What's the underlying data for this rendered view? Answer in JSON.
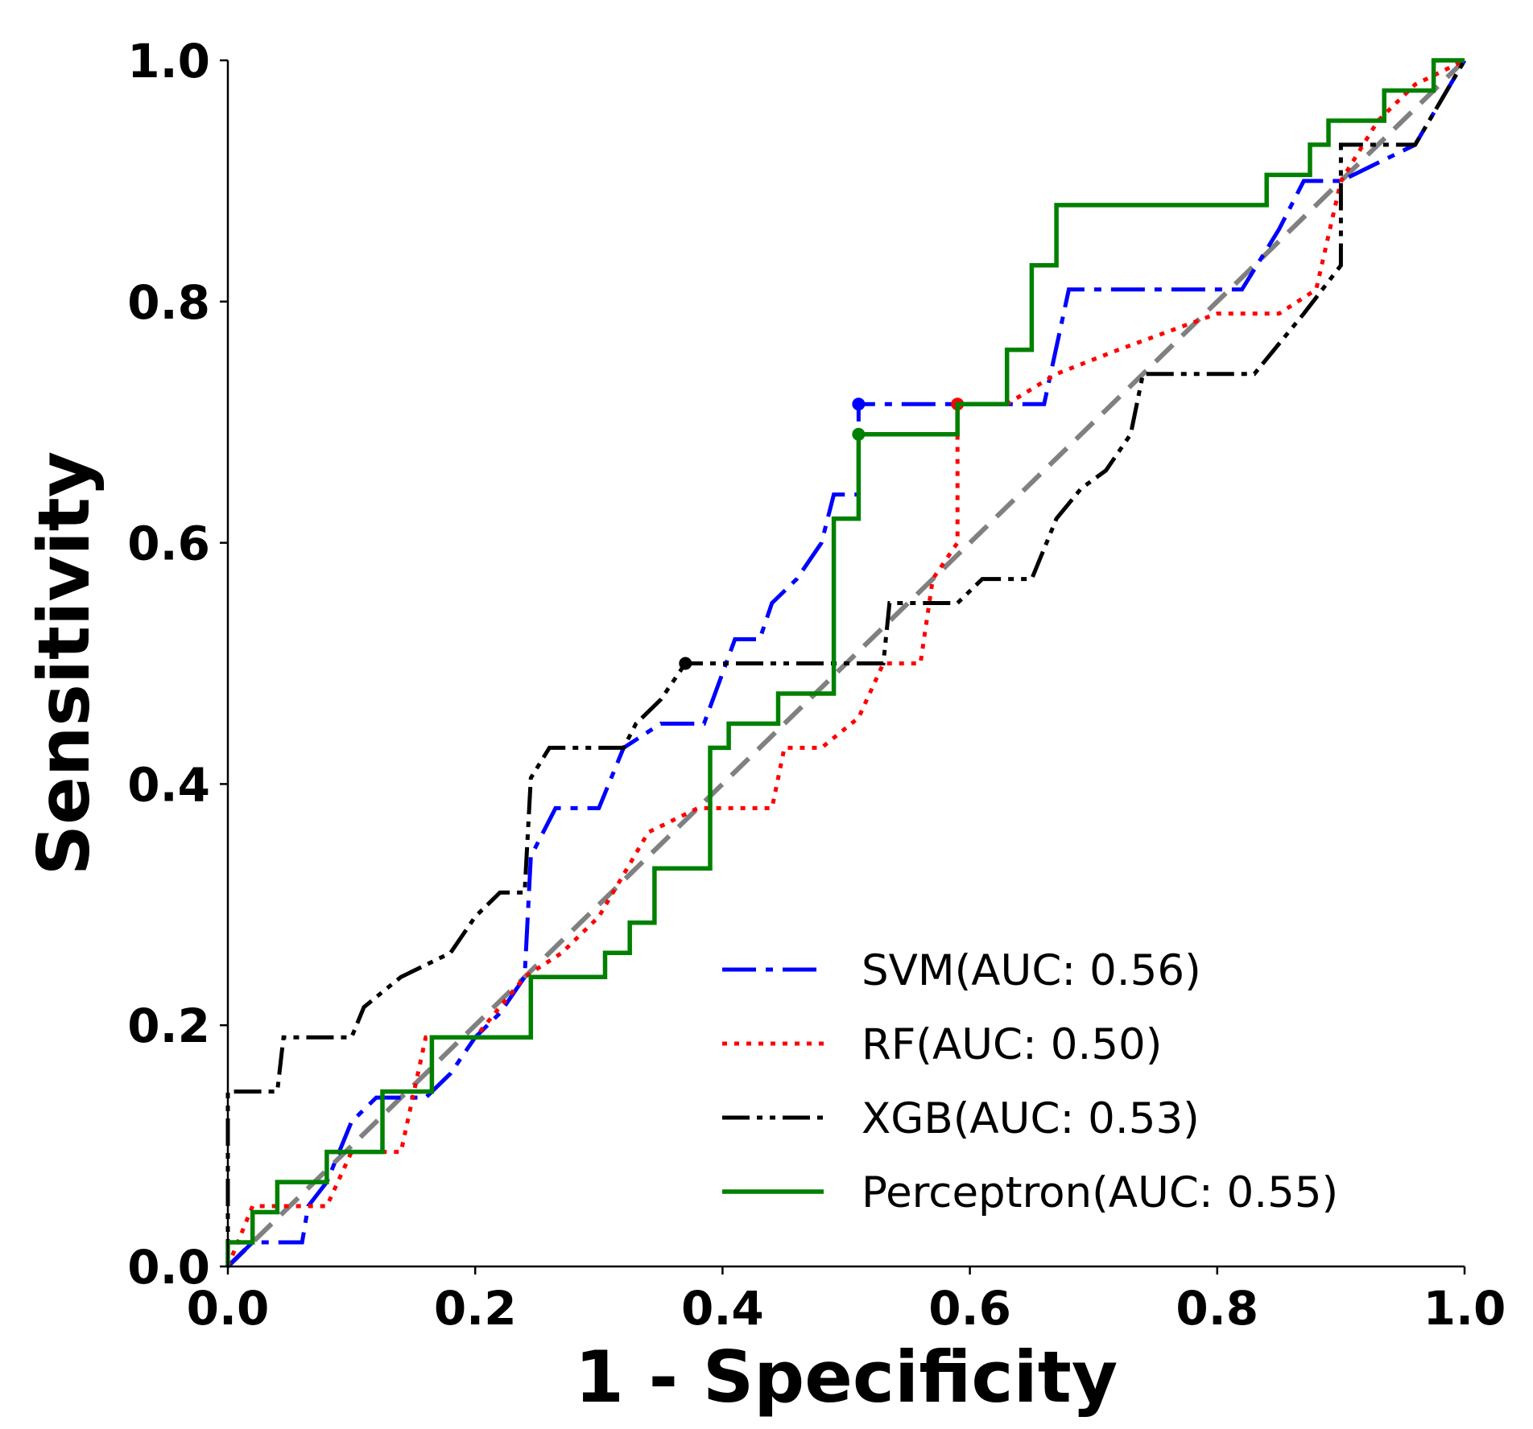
{
  "chart_data": {
    "type": "line",
    "title": "",
    "xlabel": "1 - Specificity",
    "ylabel": "Sensitivity",
    "xlim": [
      0,
      1
    ],
    "ylim": [
      0,
      1
    ],
    "x_ticks": [
      "0.0",
      "0.2",
      "0.4",
      "0.6",
      "0.8",
      "1.0"
    ],
    "y_ticks": [
      "0.0",
      "0.2",
      "0.4",
      "0.6",
      "0.8",
      "1.0"
    ],
    "grid": false,
    "legend_position": "bottom-right",
    "reference_line": {
      "x": [
        0,
        1
      ],
      "y": [
        0,
        1
      ],
      "color": "#808080",
      "style": "dashed"
    },
    "series": [
      {
        "name": "SVM(AUC: 0.56)",
        "color": "#0000ff",
        "style": "dashdot",
        "marker": {
          "x": 0.51,
          "y": 0.715
        },
        "x": [
          0,
          0.02,
          0.06,
          0.065,
          0.08,
          0.1,
          0.12,
          0.16,
          0.18,
          0.2,
          0.22,
          0.24,
          0.245,
          0.265,
          0.3,
          0.32,
          0.35,
          0.385,
          0.41,
          0.43,
          0.44,
          0.46,
          0.48,
          0.49,
          0.51,
          0.51,
          0.66,
          0.68,
          0.82,
          0.85,
          0.87,
          0.9,
          0.96,
          1.0
        ],
        "y": [
          0,
          0.02,
          0.02,
          0.05,
          0.07,
          0.12,
          0.14,
          0.14,
          0.16,
          0.19,
          0.21,
          0.24,
          0.34,
          0.38,
          0.38,
          0.43,
          0.45,
          0.45,
          0.52,
          0.52,
          0.55,
          0.57,
          0.6,
          0.64,
          0.64,
          0.715,
          0.715,
          0.81,
          0.81,
          0.86,
          0.9,
          0.9,
          0.93,
          1.0
        ]
      },
      {
        "name": "RF(AUC: 0.50)",
        "color": "#ff0000",
        "style": "dotted",
        "marker": {
          "x": 0.59,
          "y": 0.715
        },
        "x": [
          0,
          0.02,
          0.08,
          0.1,
          0.14,
          0.16,
          0.2,
          0.24,
          0.27,
          0.3,
          0.34,
          0.38,
          0.44,
          0.45,
          0.48,
          0.51,
          0.53,
          0.56,
          0.57,
          0.59,
          0.59,
          0.63,
          0.67,
          0.72,
          0.8,
          0.85,
          0.88,
          0.9,
          0.93,
          0.96,
          1.0
        ],
        "y": [
          0,
          0.05,
          0.05,
          0.095,
          0.095,
          0.19,
          0.19,
          0.24,
          0.26,
          0.29,
          0.36,
          0.38,
          0.38,
          0.43,
          0.43,
          0.455,
          0.5,
          0.5,
          0.57,
          0.6,
          0.715,
          0.715,
          0.74,
          0.76,
          0.79,
          0.79,
          0.81,
          0.9,
          0.95,
          0.98,
          1.0
        ]
      },
      {
        "name": "XGB(AUC: 0.53)",
        "color": "#000000",
        "style": "dashdotdot",
        "marker": {
          "x": 0.37,
          "y": 0.5
        },
        "x": [
          0,
          0,
          0.04,
          0.045,
          0.1,
          0.11,
          0.14,
          0.18,
          0.2,
          0.22,
          0.24,
          0.245,
          0.26,
          0.32,
          0.33,
          0.35,
          0.37,
          0.38,
          0.53,
          0.535,
          0.59,
          0.61,
          0.65,
          0.67,
          0.69,
          0.71,
          0.73,
          0.74,
          0.83,
          0.87,
          0.9,
          0.9,
          0.96,
          1.0
        ],
        "y": [
          0,
          0.145,
          0.145,
          0.19,
          0.19,
          0.215,
          0.24,
          0.26,
          0.29,
          0.31,
          0.31,
          0.405,
          0.43,
          0.43,
          0.45,
          0.47,
          0.5,
          0.5,
          0.5,
          0.55,
          0.55,
          0.57,
          0.57,
          0.62,
          0.645,
          0.66,
          0.69,
          0.74,
          0.74,
          0.79,
          0.83,
          0.93,
          0.93,
          1.0
        ]
      },
      {
        "name": "Perceptron(AUC: 0.55)",
        "color": "#008000",
        "style": "solid",
        "marker": {
          "x": 0.51,
          "y": 0.69
        },
        "x": [
          0,
          0,
          0.02,
          0.02,
          0.04,
          0.04,
          0.08,
          0.08,
          0.1,
          0.1,
          0.125,
          0.125,
          0.165,
          0.165,
          0.245,
          0.245,
          0.305,
          0.305,
          0.325,
          0.325,
          0.345,
          0.345,
          0.39,
          0.39,
          0.405,
          0.405,
          0.445,
          0.445,
          0.49,
          0.49,
          0.51,
          0.51,
          0.59,
          0.59,
          0.63,
          0.63,
          0.65,
          0.65,
          0.67,
          0.67,
          0.84,
          0.84,
          0.875,
          0.875,
          0.89,
          0.89,
          0.915,
          0.915,
          0.935,
          0.935,
          0.975,
          0.975,
          1.0
        ],
        "y": [
          0,
          0.02,
          0.02,
          0.045,
          0.045,
          0.07,
          0.07,
          0.095,
          0.095,
          0.095,
          0.095,
          0.145,
          0.145,
          0.19,
          0.19,
          0.24,
          0.24,
          0.26,
          0.26,
          0.285,
          0.285,
          0.33,
          0.33,
          0.43,
          0.43,
          0.45,
          0.45,
          0.475,
          0.475,
          0.62,
          0.62,
          0.69,
          0.69,
          0.715,
          0.715,
          0.76,
          0.76,
          0.83,
          0.83,
          0.88,
          0.88,
          0.905,
          0.905,
          0.93,
          0.93,
          0.95,
          0.95,
          0.95,
          0.95,
          0.975,
          0.975,
          1.0,
          1.0
        ]
      }
    ]
  }
}
